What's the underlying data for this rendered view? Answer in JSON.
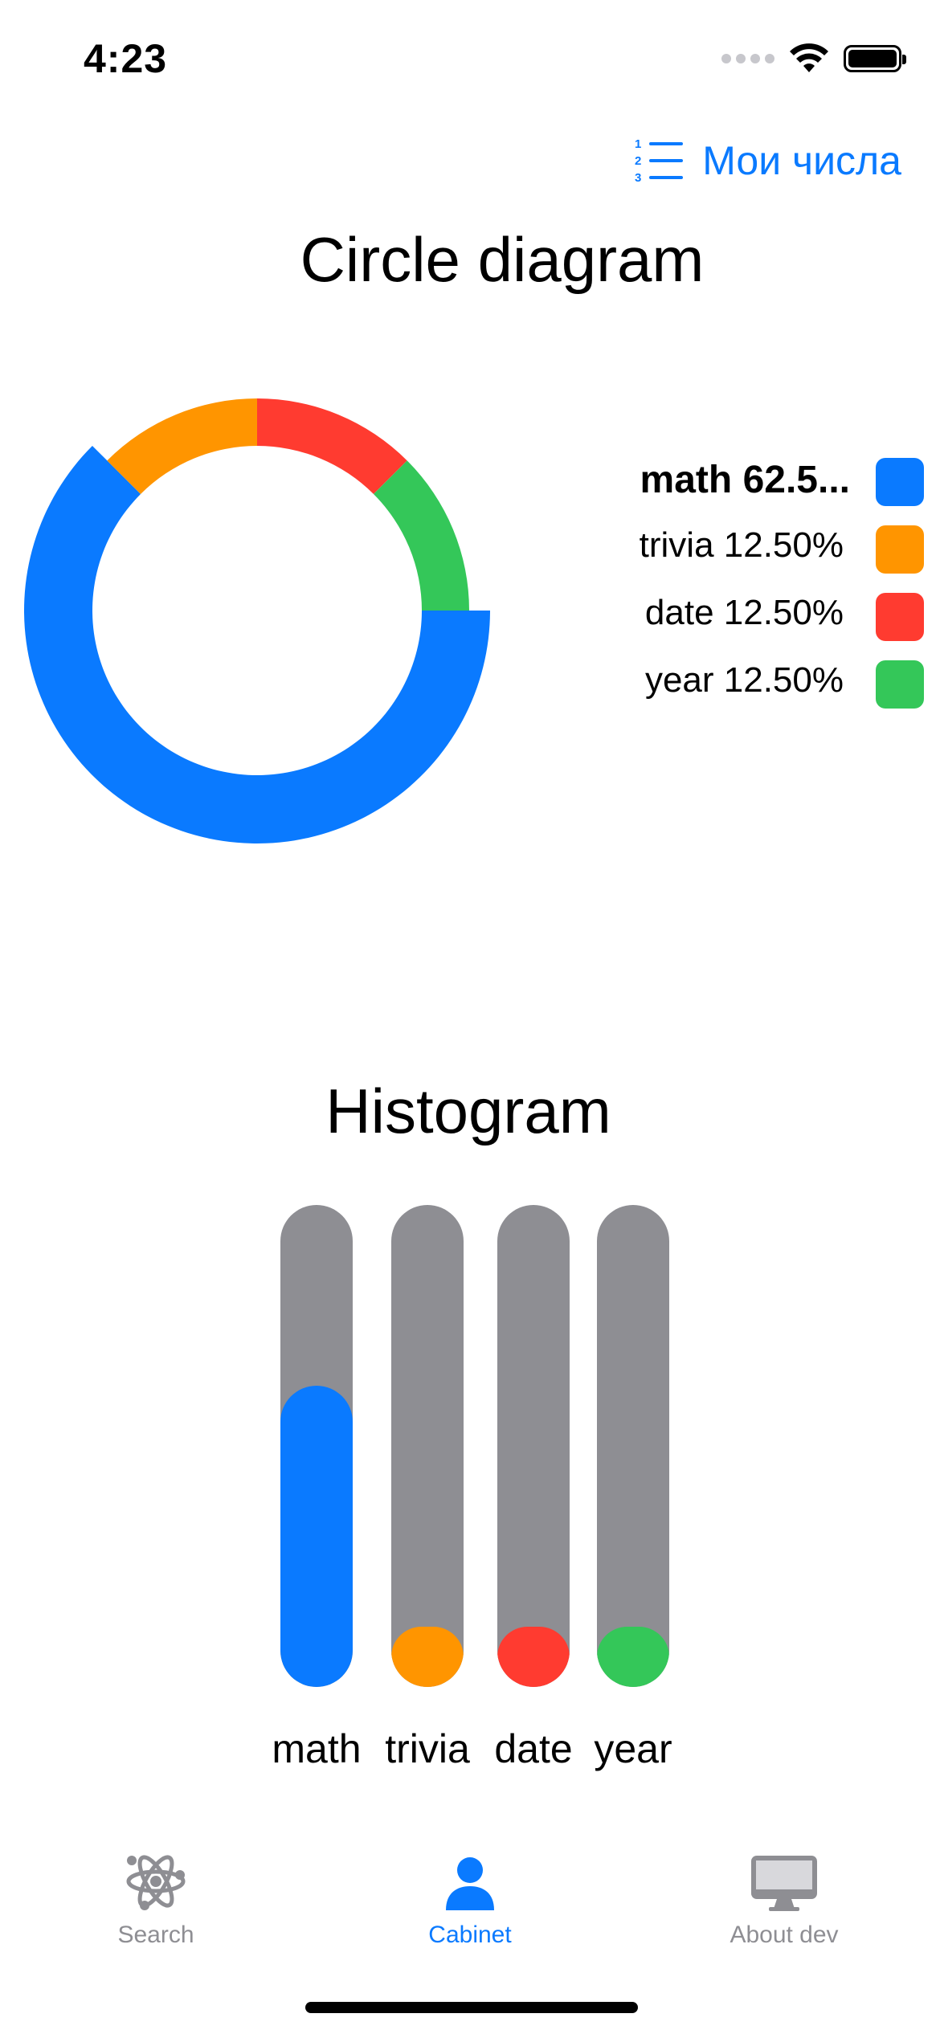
{
  "status_bar": {
    "time": "4:23"
  },
  "nav": {
    "my_numbers_label": "Мои числа",
    "my_numbers_icon": "numbered-list-icon"
  },
  "circle_section": {
    "title": "Circle diagram"
  },
  "histogram_section": {
    "title": "Histogram"
  },
  "legend": [
    {
      "text": "math 62.5...",
      "color": "#0a7aff",
      "bold": true
    },
    {
      "text": "trivia 12.50%",
      "color": "#ff9500",
      "bold": false
    },
    {
      "text": "date 12.50%",
      "color": "#ff3b30",
      "bold": false
    },
    {
      "text": "year 12.50%",
      "color": "#34c759",
      "bold": false
    }
  ],
  "chart_data": [
    {
      "type": "pie",
      "title": "Circle diagram",
      "categories": [
        "math",
        "trivia",
        "date",
        "year"
      ],
      "values": [
        62.5,
        12.5,
        12.5,
        12.5
      ],
      "colors": [
        "#0a7aff",
        "#ff9500",
        "#ff3b30",
        "#34c759"
      ],
      "legend": "right"
    },
    {
      "type": "bar",
      "title": "Histogram",
      "categories": [
        "math",
        "trivia",
        "date",
        "year"
      ],
      "values": [
        0.625,
        0.125,
        0.125,
        0.125
      ],
      "ylim": [
        0,
        1
      ],
      "colors": [
        "#0a7aff",
        "#ff9500",
        "#ff3b30",
        "#34c759"
      ],
      "track_color": "#8e8e93"
    }
  ],
  "tabs": [
    {
      "label": "Search",
      "icon": "atom-icon",
      "active": false,
      "color": "#8e8e93"
    },
    {
      "label": "Cabinet",
      "icon": "person-icon",
      "active": true,
      "color": "#0a7aff"
    },
    {
      "label": "About dev",
      "icon": "desktop-computer-icon",
      "active": false,
      "color": "#8e8e93"
    }
  ]
}
